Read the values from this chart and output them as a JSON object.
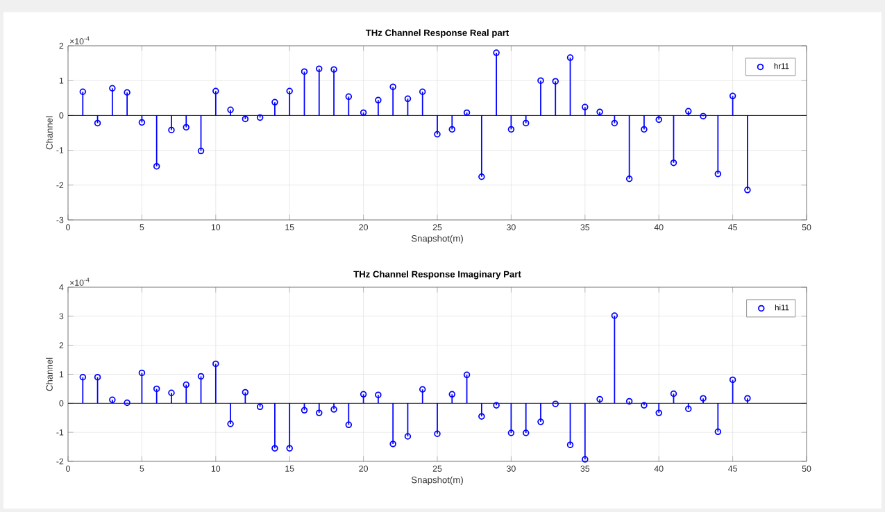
{
  "chart_data": [
    {
      "type": "lollipop",
      "title": "THz Channel Response Real part",
      "xlabel": "Snapshot(m)",
      "ylabel": "Channel",
      "annotations": [
        "×10$^{-4}$"
      ],
      "x": [
        1,
        2,
        3,
        4,
        5,
        6,
        7,
        8,
        9,
        10,
        11,
        12,
        13,
        14,
        15,
        16,
        17,
        18,
        19,
        20,
        21,
        22,
        23,
        24,
        25,
        26,
        27,
        28,
        29,
        30,
        31,
        32,
        33,
        34,
        35,
        36,
        37,
        38,
        39,
        40,
        41,
        42,
        43,
        44,
        45,
        46
      ],
      "series": [
        {
          "name": "hr11",
          "color": "#0000ff",
          "values": [
            0.68,
            -0.22,
            0.78,
            0.66,
            -0.2,
            -1.46,
            -0.42,
            -0.34,
            -1.02,
            0.7,
            0.16,
            -0.1,
            -0.06,
            0.38,
            0.7,
            1.26,
            1.34,
            1.32,
            0.54,
            0.08,
            0.44,
            0.82,
            0.48,
            0.68,
            -0.54,
            -0.4,
            0.08,
            -1.76,
            1.8,
            -0.4,
            -0.22,
            1.0,
            0.98,
            1.66,
            0.24,
            0.1,
            -0.22,
            -1.82,
            -0.4,
            -0.12,
            -1.36,
            0.12,
            -0.02,
            -1.68,
            0.56,
            -2.14
          ]
        }
      ],
      "xlim": [
        0,
        50
      ],
      "xticks": [
        0,
        5,
        10,
        15,
        20,
        25,
        30,
        35,
        40,
        45,
        50
      ],
      "ylim": [
        -3,
        2
      ],
      "yticks": [
        -3,
        -2,
        -1,
        0,
        1,
        2
      ],
      "grid": true,
      "legend": "top right",
      "marker": "circle"
    },
    {
      "type": "lollipop",
      "title": "THz Channel Response Imaginary Part",
      "xlabel": "Snapshot(m)",
      "ylabel": "Channel",
      "annotations": [
        "×10$^{-4}$"
      ],
      "x": [
        1,
        2,
        3,
        4,
        5,
        6,
        7,
        8,
        9,
        10,
        11,
        12,
        13,
        14,
        15,
        16,
        17,
        18,
        19,
        20,
        21,
        22,
        23,
        24,
        25,
        26,
        27,
        28,
        29,
        30,
        31,
        32,
        33,
        34,
        35,
        36,
        37,
        38,
        39,
        40,
        41,
        42,
        43,
        44,
        45,
        46
      ],
      "series": [
        {
          "name": "hi11",
          "color": "#0000ff",
          "values": [
            0.9,
            0.9,
            0.12,
            0.02,
            1.05,
            0.5,
            0.36,
            0.64,
            0.93,
            1.36,
            -0.71,
            0.38,
            -0.12,
            -1.55,
            -1.55,
            -0.24,
            -0.33,
            -0.21,
            -0.74,
            0.31,
            0.29,
            -1.4,
            -1.14,
            0.48,
            -1.05,
            0.31,
            0.98,
            -0.45,
            -0.07,
            -1.02,
            -1.02,
            -0.64,
            -0.02,
            -1.43,
            -1.93,
            0.14,
            3.02,
            0.07,
            -0.07,
            -0.33,
            0.33,
            -0.19,
            0.17,
            -0.98,
            0.81,
            0.17
          ]
        }
      ],
      "xlim": [
        0,
        50
      ],
      "xticks": [
        0,
        5,
        10,
        15,
        20,
        25,
        30,
        35,
        40,
        45,
        50
      ],
      "ylim": [
        -2,
        4
      ],
      "yticks": [
        -2,
        -1,
        0,
        1,
        2,
        3,
        4
      ],
      "grid": true,
      "legend": "top right",
      "marker": "circle"
    }
  ]
}
